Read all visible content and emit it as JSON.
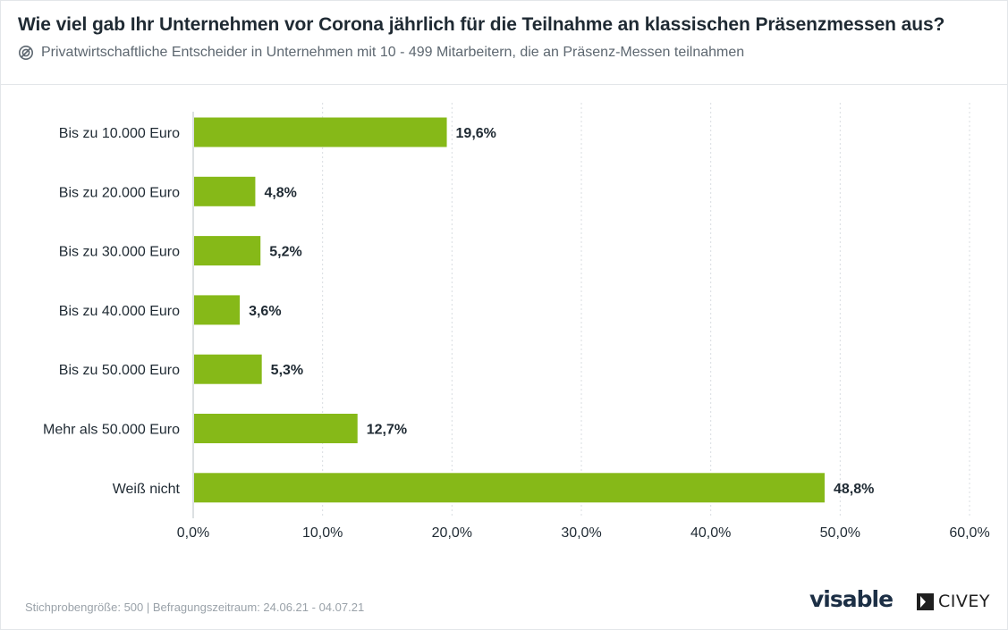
{
  "header": {
    "title": "Wie viel gab Ihr Unternehmen vor Corona jährlich für die Teilnahme an klassischen Präsenzmessen aus?",
    "subtitle": "Privatwirtschaftliche Entscheider in Unternehmen mit 10 - 499 Mitarbeitern, die an Präsenz-Messen teilnahmen"
  },
  "footer": {
    "note": "Stichprobengröße: 500 | Befragungszeitraum: 24.06.21 - 04.07.21",
    "logo_left": "visable",
    "logo_right": "CIVEY"
  },
  "colors": {
    "bar": "#86b918",
    "grid": "#d9dde1",
    "text": "#1f2a33"
  },
  "chart_data": {
    "type": "bar",
    "orientation": "horizontal",
    "categories": [
      "Bis zu 10.000 Euro",
      "Bis zu 20.000 Euro",
      "Bis zu 30.000 Euro",
      "Bis zu 40.000 Euro",
      "Bis zu 50.000 Euro",
      "Mehr als 50.000 Euro",
      "Weiß nicht"
    ],
    "values": [
      19.6,
      4.8,
      5.2,
      3.6,
      5.3,
      12.7,
      48.8
    ],
    "value_labels": [
      "19,6%",
      "4,8%",
      "5,2%",
      "3,6%",
      "5,3%",
      "12,7%",
      "48,8%"
    ],
    "xlim": [
      0,
      60
    ],
    "xticks": [
      "0,0%",
      "10,0%",
      "20,0%",
      "30,0%",
      "40,0%",
      "50,0%",
      "60,0%"
    ],
    "grid": true,
    "legend": "none"
  }
}
